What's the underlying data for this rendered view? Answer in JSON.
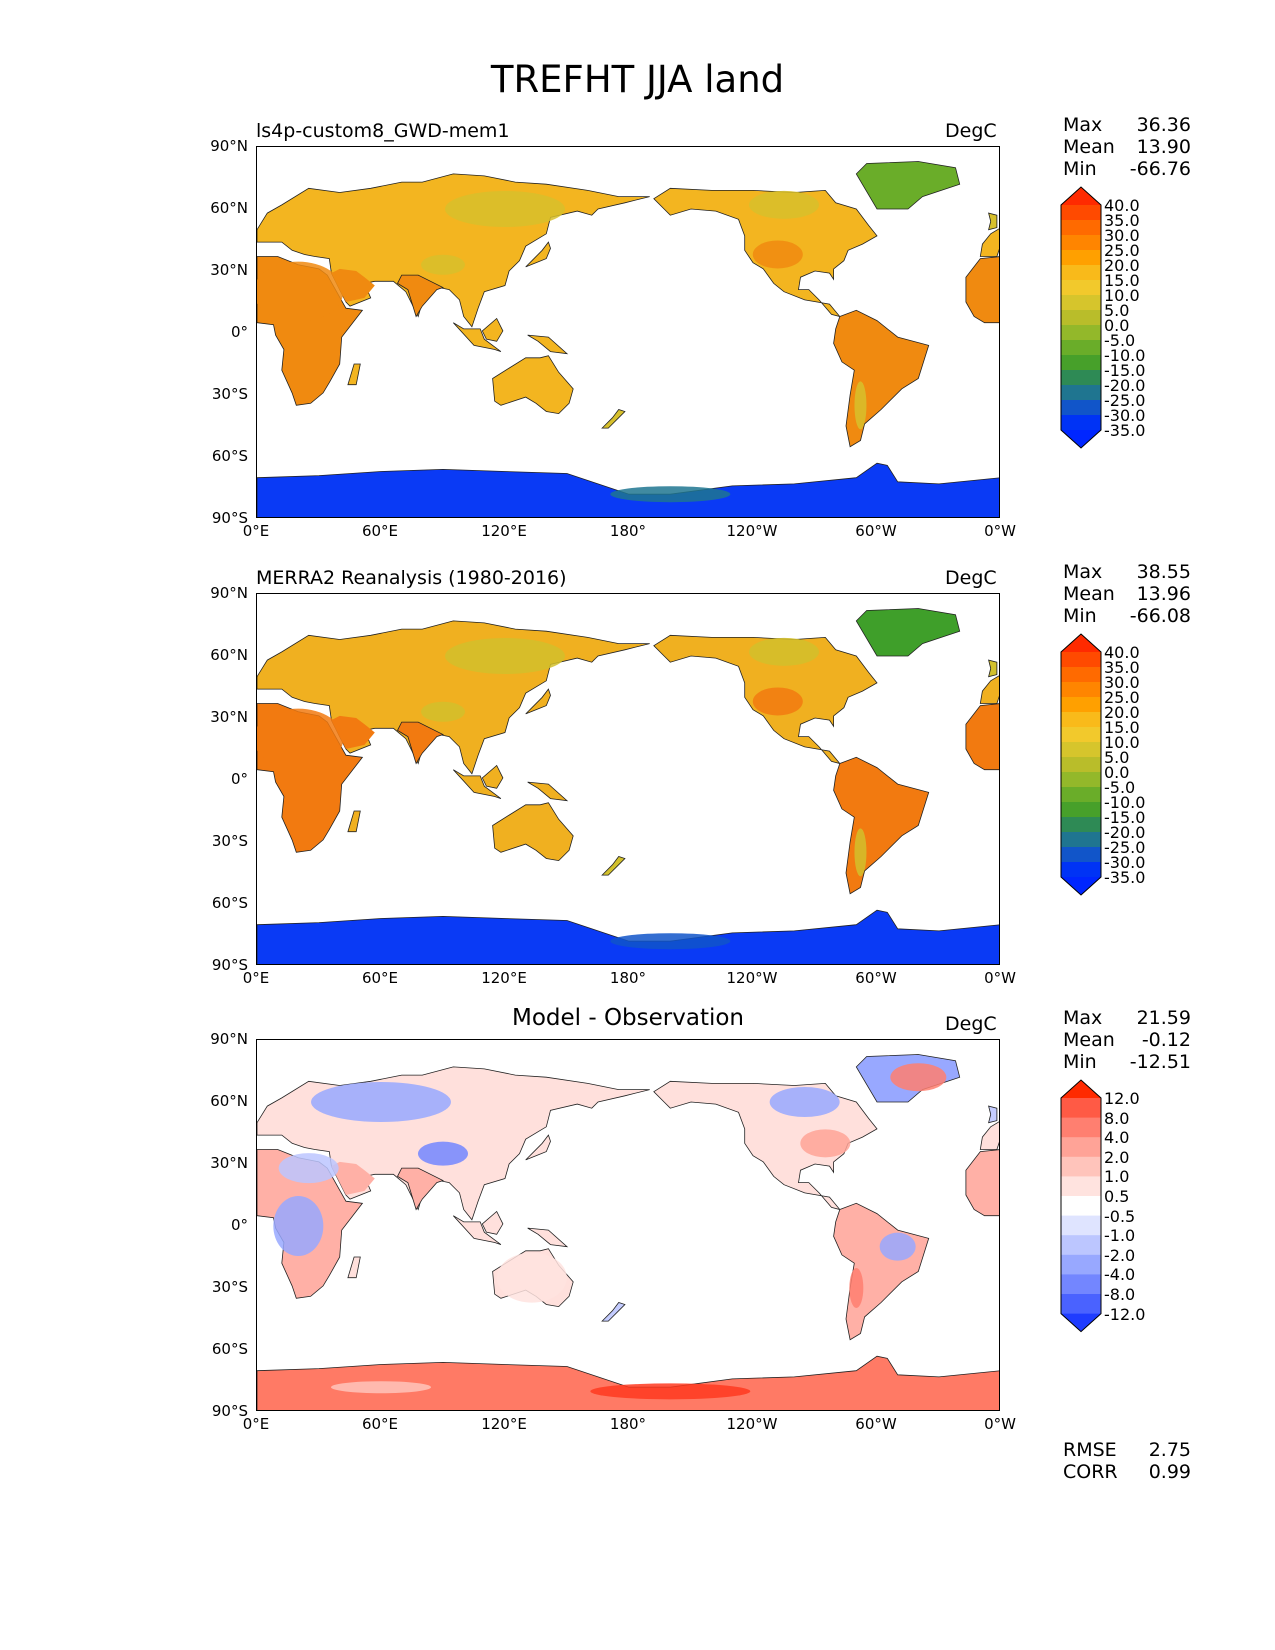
{
  "figure_title": "TREFHT JJA land",
  "axes": {
    "lat_ticks": [
      "90°N",
      "60°N",
      "30°N",
      "0°",
      "30°S",
      "60°S",
      "90°S"
    ],
    "lon_ticks": [
      "0°E",
      "60°E",
      "120°E",
      "180°",
      "120°W",
      "60°W",
      "0°W"
    ]
  },
  "panels": [
    {
      "title": "ls4p-custom8_GWD-mem1",
      "units": "DegC",
      "stats": {
        "max_label": "Max",
        "max": "36.36",
        "mean_label": "Mean",
        "mean": "13.90",
        "min_label": "Min",
        "min": "-66.76"
      },
      "colorbar_levels": [
        "40.0",
        "35.0",
        "30.0",
        "25.0",
        "20.0",
        "15.0",
        "10.0",
        "5.0",
        "0.0",
        "-5.0",
        "-10.0",
        "-15.0",
        "-20.0",
        "-25.0",
        "-30.0",
        "-35.0"
      ],
      "colorbar_colors": [
        "#ff2a00",
        "#ff4a00",
        "#ff6a00",
        "#ff8500",
        "#ffa000",
        "#f9ba1a",
        "#f2c92c",
        "#d6c52c",
        "#b9bd2a",
        "#93b82a",
        "#6aad29",
        "#47a02a",
        "#2e8a55",
        "#1f7590",
        "#1155c9",
        "#0033f5",
        "#0026ff"
      ],
      "land_colors": {
        "warm": "#f08a10",
        "mid": "#f3b520",
        "cool": "#d7c02c",
        "cold": "#6aad29",
        "ice": "#0a3af5"
      }
    },
    {
      "title": "MERRA2 Reanalysis (1980-2016)",
      "units": "DegC",
      "stats": {
        "max_label": "Max",
        "max": "38.55",
        "mean_label": "Mean",
        "mean": "13.96",
        "min_label": "Min",
        "min": "-66.08"
      },
      "colorbar_levels": [
        "40.0",
        "35.0",
        "30.0",
        "25.0",
        "20.0",
        "15.0",
        "10.0",
        "5.0",
        "0.0",
        "-5.0",
        "-10.0",
        "-15.0",
        "-20.0",
        "-25.0",
        "-30.0",
        "-35.0"
      ],
      "colorbar_colors": [
        "#ff2a00",
        "#ff4a00",
        "#ff6a00",
        "#ff8500",
        "#ffa000",
        "#f9ba1a",
        "#f2c92c",
        "#d6c52c",
        "#b9bd2a",
        "#93b82a",
        "#6aad29",
        "#47a02a",
        "#2e8a55",
        "#1f7590",
        "#1155c9",
        "#0033f5",
        "#0026ff"
      ],
      "land_colors": {
        "warm": "#f27a10",
        "mid": "#f0b020",
        "cool": "#d2c02c",
        "cold": "#3f9f2a",
        "ice": "#0a3af5"
      }
    },
    {
      "title": "Model - Observation",
      "units": "DegC",
      "stats": {
        "max_label": "Max",
        "max": "21.59",
        "mean_label": "Mean",
        "mean": "-0.12",
        "min_label": "Min",
        "min": "-12.51"
      },
      "colorbar_levels": [
        "12.0",
        "8.0",
        "4.0",
        "2.0",
        "1.0",
        "0.5",
        "-0.5",
        "-1.0",
        "-2.0",
        "-4.0",
        "-8.0",
        "-12.0"
      ],
      "colorbar_colors": [
        "#ff2a00",
        "#ff5a45",
        "#ff7f70",
        "#ffa397",
        "#ffc4bb",
        "#ffe3df",
        "#ffffff",
        "#dfe4ff",
        "#bcc6ff",
        "#98a8ff",
        "#7386ff",
        "#4a62ff",
        "#1f3cff"
      ],
      "land_colors": {
        "warm": "#ffb0a6",
        "mid": "#ffe0dc",
        "cool": "#c4ccff",
        "cold": "#98a8ff",
        "ice": "#ff7a65"
      },
      "metrics": {
        "rmse_label": "RMSE",
        "rmse": "2.75",
        "corr_label": "CORR",
        "corr": "0.99"
      }
    }
  ]
}
